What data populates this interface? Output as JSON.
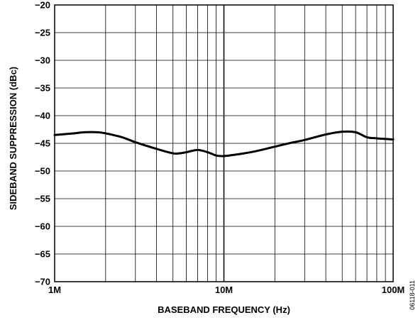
{
  "chart_data": {
    "type": "line",
    "xlabel": "BASEBAND FREQUENCY (Hz)",
    "ylabel": "SIDEBAND SUPPRESSION (dBc)",
    "x_scale": "log",
    "xlim": [
      1000000,
      100000000
    ],
    "ylim": [
      -70,
      -20
    ],
    "grid": true,
    "x_ticks": [
      {
        "value": 1000000,
        "label": "1M"
      },
      {
        "value": 10000000,
        "label": "10M"
      },
      {
        "value": 100000000,
        "label": "100M"
      }
    ],
    "y_ticks": [
      {
        "value": -20,
        "label": "−20"
      },
      {
        "value": -25,
        "label": "−25"
      },
      {
        "value": -30,
        "label": "−30"
      },
      {
        "value": -35,
        "label": "−35"
      },
      {
        "value": -40,
        "label": "−40"
      },
      {
        "value": -45,
        "label": "−45"
      },
      {
        "value": -50,
        "label": "−50"
      },
      {
        "value": -55,
        "label": "−55"
      },
      {
        "value": -60,
        "label": "−60"
      },
      {
        "value": -65,
        "label": "−65"
      },
      {
        "value": -70,
        "label": "−70"
      }
    ],
    "series": [
      {
        "color": "#000000",
        "x": [
          1000000,
          1300000,
          1500000,
          1800000,
          2000000,
          2500000,
          3000000,
          4000000,
          5000000,
          5500000,
          6000000,
          7000000,
          8000000,
          9000000,
          10000000,
          12000000,
          15000000,
          20000000,
          25000000,
          30000000,
          40000000,
          50000000,
          60000000,
          70000000,
          80000000,
          100000000
        ],
        "y": [
          -43.5,
          -43.2,
          -43.0,
          -43.0,
          -43.2,
          -43.9,
          -44.8,
          -46.0,
          -46.8,
          -46.8,
          -46.6,
          -46.2,
          -46.6,
          -47.2,
          -47.3,
          -47.0,
          -46.5,
          -45.6,
          -44.9,
          -44.4,
          -43.4,
          -42.9,
          -43.0,
          -43.9,
          -44.1,
          -44.3
        ]
      }
    ]
  },
  "figure_id": "06118-011"
}
